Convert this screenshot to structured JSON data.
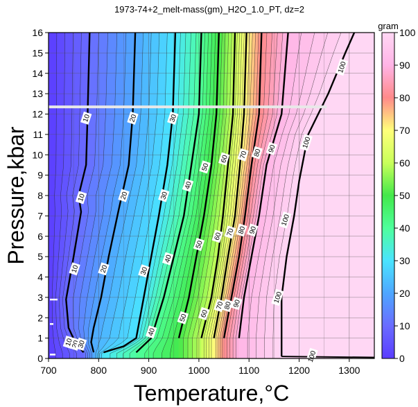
{
  "chart_data": {
    "type": "heatmap",
    "title": "1973-74+2_melt-mass(gm)_H2O_1.0_PT, dz=2",
    "xlabel": "Temperature,°C",
    "ylabel": "Pressure,kbar",
    "xlim": [
      700,
      1350
    ],
    "ylim": [
      0,
      16
    ],
    "x_ticks": [
      700,
      800,
      900,
      1000,
      1100,
      1200,
      1300
    ],
    "y_ticks": [
      0,
      1,
      2,
      3,
      4,
      5,
      6,
      7,
      8,
      9,
      10,
      11,
      12,
      13,
      14,
      15,
      16
    ],
    "grid": true,
    "colorbar": {
      "label": "gram",
      "range": [
        0,
        100
      ],
      "ticks": [
        0,
        10,
        20,
        30,
        40,
        50,
        60,
        70,
        80,
        90,
        100
      ],
      "colors": [
        "#7b5cff",
        "#5a8cff",
        "#4fd0ff",
        "#5cff8a",
        "#ffff6a",
        "#ff8a8a",
        "#ffc8f0"
      ]
    },
    "contour_interval": 2,
    "major_contour_interval": 10,
    "major_contours": [
      {
        "level": 10,
        "points": [
          [
            770,
            0.3
          ],
          [
            755,
            0.7
          ],
          [
            740,
            1.5
          ],
          [
            735,
            2.9
          ],
          [
            750,
            5
          ],
          [
            765,
            7.2
          ],
          [
            760,
            8
          ],
          [
            775,
            9.5
          ],
          [
            778,
            12
          ],
          [
            782,
            16
          ]
        ]
      },
      {
        "level": 20,
        "points": [
          [
            790,
            0.3
          ],
          [
            785,
            0.8
          ],
          [
            790,
            1.5
          ],
          [
            805,
            3
          ],
          [
            820,
            5
          ],
          [
            840,
            7.3
          ],
          [
            860,
            9.5
          ],
          [
            868,
            12
          ],
          [
            873,
            16
          ]
        ]
      },
      {
        "level": 30,
        "points": [
          [
            810,
            0.3
          ],
          [
            850,
            0.6
          ],
          [
            875,
            1
          ],
          [
            890,
            3
          ],
          [
            905,
            5
          ],
          [
            920,
            7
          ],
          [
            937,
            9.5
          ],
          [
            948,
            12
          ],
          [
            953,
            16
          ]
        ]
      },
      {
        "level": 40,
        "points": [
          [
            875,
            0.3
          ],
          [
            905,
            1
          ],
          [
            930,
            3
          ],
          [
            950,
            5
          ],
          [
            970,
            7
          ],
          [
            985,
            9.5
          ],
          [
            1000,
            12
          ],
          [
            1005,
            16
          ]
        ]
      },
      {
        "level": 50,
        "points": [
          [
            960,
            1
          ],
          [
            980,
            3
          ],
          [
            995,
            5
          ],
          [
            1010,
            7
          ],
          [
            1025,
            9.5
          ],
          [
            1035,
            12
          ],
          [
            1040,
            16
          ]
        ]
      },
      {
        "level": 60,
        "points": [
          [
            1005,
            1
          ],
          [
            1025,
            3
          ],
          [
            1038,
            5
          ],
          [
            1048,
            7
          ],
          [
            1058,
            9.5
          ],
          [
            1068,
            12
          ],
          [
            1072,
            16
          ]
        ]
      },
      {
        "level": 70,
        "points": [
          [
            1030,
            1
          ],
          [
            1045,
            3
          ],
          [
            1058,
            5
          ],
          [
            1072,
            7
          ],
          [
            1082,
            9.5
          ],
          [
            1090,
            12
          ],
          [
            1095,
            16
          ]
        ]
      },
      {
        "level": 80,
        "points": [
          [
            1050,
            1
          ],
          [
            1065,
            3
          ],
          [
            1080,
            5
          ],
          [
            1092,
            7
          ],
          [
            1105,
            9.5
          ],
          [
            1120,
            12
          ],
          [
            1125,
            16
          ]
        ]
      },
      {
        "level": 90,
        "points": [
          [
            1080,
            1
          ],
          [
            1090,
            3
          ],
          [
            1105,
            5
          ],
          [
            1120,
            7
          ],
          [
            1135,
            9.5
          ],
          [
            1165,
            12
          ],
          [
            1178,
            16
          ]
        ]
      },
      {
        "level": 100,
        "points": [
          [
            1165,
            0.1
          ],
          [
            1165,
            1
          ],
          [
            1165,
            3
          ],
          [
            1175,
            5
          ],
          [
            1190,
            7
          ],
          [
            1200,
            8.7
          ],
          [
            1218,
            11
          ],
          [
            1258,
            13
          ],
          [
            1292,
            15
          ],
          [
            1310,
            16
          ]
        ]
      }
    ],
    "contour_labels": [
      {
        "text": "10",
        "x": 775,
        "y": 11.8
      },
      {
        "text": "20",
        "x": 868,
        "y": 11.8
      },
      {
        "text": "30",
        "x": 948,
        "y": 11.8
      },
      {
        "text": "10",
        "x": 765,
        "y": 7.9
      },
      {
        "text": "20",
        "x": 850,
        "y": 8.0
      },
      {
        "text": "30",
        "x": 930,
        "y": 8.0
      },
      {
        "text": "40",
        "x": 978,
        "y": 8.5
      },
      {
        "text": "50",
        "x": 1012,
        "y": 9.4
      },
      {
        "text": "60",
        "x": 1050,
        "y": 9.8
      },
      {
        "text": "70",
        "x": 1088,
        "y": 10.0
      },
      {
        "text": "80",
        "x": 1116,
        "y": 10.1
      },
      {
        "text": "90",
        "x": 1145,
        "y": 10.3
      },
      {
        "text": "100",
        "x": 1214,
        "y": 10.6
      },
      {
        "text": "100",
        "x": 1285,
        "y": 14.3
      },
      {
        "text": "10",
        "x": 752,
        "y": 4.4
      },
      {
        "text": "20",
        "x": 810,
        "y": 4.4
      },
      {
        "text": "30",
        "x": 890,
        "y": 4.3
      },
      {
        "text": "40",
        "x": 938,
        "y": 4.9
      },
      {
        "text": "50",
        "x": 1000,
        "y": 5.6
      },
      {
        "text": "60",
        "x": 1037,
        "y": 6.0
      },
      {
        "text": "70",
        "x": 1062,
        "y": 6.2
      },
      {
        "text": "80",
        "x": 1085,
        "y": 6.3
      },
      {
        "text": "90",
        "x": 1107,
        "y": 6.3
      },
      {
        "text": "100",
        "x": 1172,
        "y": 6.8
      },
      {
        "text": "40",
        "x": 905,
        "y": 1.3
      },
      {
        "text": "50",
        "x": 968,
        "y": 2.0
      },
      {
        "text": "60",
        "x": 1010,
        "y": 2.2
      },
      {
        "text": "70",
        "x": 1041,
        "y": 2.6
      },
      {
        "text": "80",
        "x": 1057,
        "y": 2.6
      },
      {
        "text": "90",
        "x": 1075,
        "y": 2.7
      },
      {
        "text": "100",
        "x": 1157,
        "y": 3.0
      },
      {
        "text": "10",
        "x": 740,
        "y": 0.8
      },
      {
        "text": "20",
        "x": 753,
        "y": 0.7
      },
      {
        "text": "30",
        "x": 765,
        "y": 0.7
      },
      {
        "text": "100",
        "x": 1225,
        "y": 0.1
      }
    ]
  }
}
